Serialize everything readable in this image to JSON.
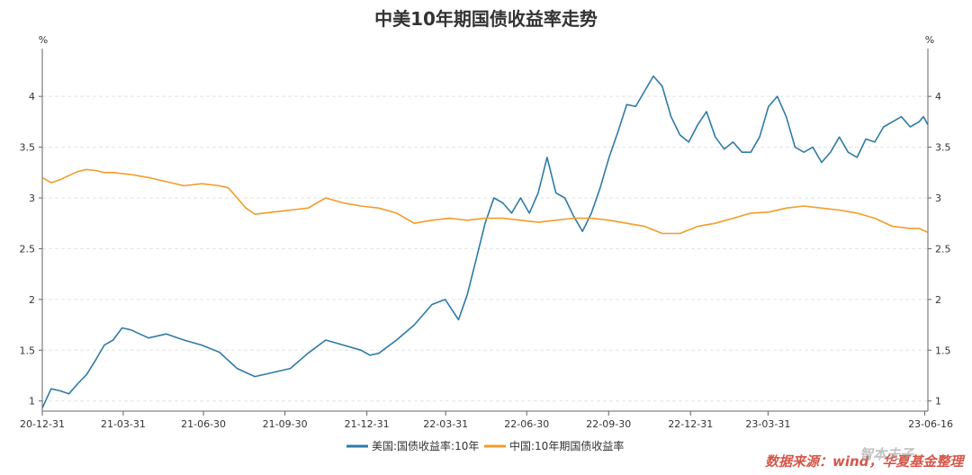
{
  "chart_data": {
    "type": "line",
    "title": "中美10年期国债收益率走势",
    "left_unit": "%",
    "right_unit": "%",
    "ylim": [
      0.9,
      4.4
    ],
    "y_ticks": [
      1,
      1.5,
      2,
      2.5,
      3,
      3.5,
      4
    ],
    "y_tick_labels": [
      "1",
      "1.5",
      "2",
      "2.5",
      "3",
      "3.5",
      "4"
    ],
    "x_tick_labels": [
      "20-12-31",
      "21-03-31",
      "21-06-30",
      "21-09-30",
      "21-12-31",
      "22-03-31",
      "22-06-30",
      "22-09-30",
      "22-12-31",
      "23-03-31",
      "23-06-16"
    ],
    "x_tick_positions": [
      0,
      0.0914,
      0.182,
      0.274,
      0.3665,
      0.4555,
      0.547,
      0.6395,
      0.732,
      0.8195,
      0.9965
    ],
    "x_range": [
      0,
      1
    ],
    "grid": true,
    "legend_position": "bottom",
    "series": [
      {
        "name": "美国:国债收益率:10年",
        "color": "#2E7BA6",
        "x": [
          0,
          0.01,
          0.02,
          0.03,
          0.04,
          0.05,
          0.06,
          0.07,
          0.08,
          0.09,
          0.1,
          0.12,
          0.14,
          0.16,
          0.18,
          0.2,
          0.22,
          0.24,
          0.26,
          0.28,
          0.3,
          0.32,
          0.34,
          0.36,
          0.37,
          0.38,
          0.4,
          0.42,
          0.44,
          0.455,
          0.47,
          0.48,
          0.49,
          0.5,
          0.51,
          0.52,
          0.53,
          0.54,
          0.55,
          0.56,
          0.57,
          0.58,
          0.59,
          0.6,
          0.61,
          0.62,
          0.63,
          0.64,
          0.65,
          0.66,
          0.67,
          0.68,
          0.69,
          0.7,
          0.71,
          0.72,
          0.73,
          0.74,
          0.75,
          0.76,
          0.77,
          0.78,
          0.79,
          0.8,
          0.81,
          0.82,
          0.83,
          0.84,
          0.85,
          0.86,
          0.87,
          0.88,
          0.89,
          0.9,
          0.91,
          0.92,
          0.93,
          0.94,
          0.95,
          0.96,
          0.97,
          0.98,
          0.99,
          0.995,
          1.0
        ],
        "values": [
          0.93,
          1.12,
          1.1,
          1.07,
          1.17,
          1.26,
          1.4,
          1.55,
          1.6,
          1.72,
          1.7,
          1.62,
          1.66,
          1.6,
          1.55,
          1.48,
          1.32,
          1.24,
          1.28,
          1.32,
          1.47,
          1.6,
          1.55,
          1.5,
          1.45,
          1.47,
          1.6,
          1.75,
          1.95,
          2.0,
          1.8,
          2.05,
          2.4,
          2.75,
          3.0,
          2.95,
          2.85,
          3.0,
          2.85,
          3.05,
          3.4,
          3.05,
          3.0,
          2.82,
          2.67,
          2.85,
          3.1,
          3.4,
          3.65,
          3.92,
          3.9,
          4.05,
          4.2,
          4.1,
          3.8,
          3.62,
          3.55,
          3.72,
          3.85,
          3.6,
          3.48,
          3.55,
          3.45,
          3.45,
          3.6,
          3.9,
          4.0,
          3.8,
          3.5,
          3.45,
          3.5,
          3.35,
          3.45,
          3.6,
          3.45,
          3.4,
          3.58,
          3.55,
          3.7,
          3.75,
          3.8,
          3.7,
          3.75,
          3.8,
          3.72
        ]
      },
      {
        "name": "中国:10年期国债收益率",
        "color": "#F39C28",
        "x": [
          0,
          0.01,
          0.02,
          0.03,
          0.04,
          0.05,
          0.06,
          0.07,
          0.08,
          0.09,
          0.1,
          0.12,
          0.14,
          0.16,
          0.18,
          0.2,
          0.21,
          0.22,
          0.23,
          0.24,
          0.25,
          0.26,
          0.27,
          0.28,
          0.3,
          0.32,
          0.34,
          0.36,
          0.38,
          0.4,
          0.42,
          0.44,
          0.46,
          0.48,
          0.5,
          0.52,
          0.54,
          0.56,
          0.58,
          0.6,
          0.62,
          0.64,
          0.66,
          0.68,
          0.7,
          0.72,
          0.74,
          0.76,
          0.78,
          0.8,
          0.82,
          0.84,
          0.86,
          0.88,
          0.9,
          0.92,
          0.94,
          0.96,
          0.98,
          0.99,
          1.0
        ],
        "values": [
          3.2,
          3.15,
          3.18,
          3.22,
          3.26,
          3.28,
          3.27,
          3.25,
          3.25,
          3.24,
          3.23,
          3.2,
          3.16,
          3.12,
          3.14,
          3.12,
          3.1,
          3.0,
          2.9,
          2.84,
          2.85,
          2.86,
          2.87,
          2.88,
          2.9,
          3.0,
          2.95,
          2.92,
          2.9,
          2.85,
          2.75,
          2.78,
          2.8,
          2.78,
          2.8,
          2.8,
          2.78,
          2.76,
          2.78,
          2.8,
          2.8,
          2.78,
          2.75,
          2.72,
          2.65,
          2.65,
          2.72,
          2.75,
          2.8,
          2.85,
          2.86,
          2.9,
          2.92,
          2.9,
          2.88,
          2.85,
          2.8,
          2.72,
          2.7,
          2.7,
          2.66
        ]
      }
    ]
  },
  "watermark": {
    "line1": "数据来源：wind，华夏基金整理",
    "line2": "智本夫子"
  }
}
